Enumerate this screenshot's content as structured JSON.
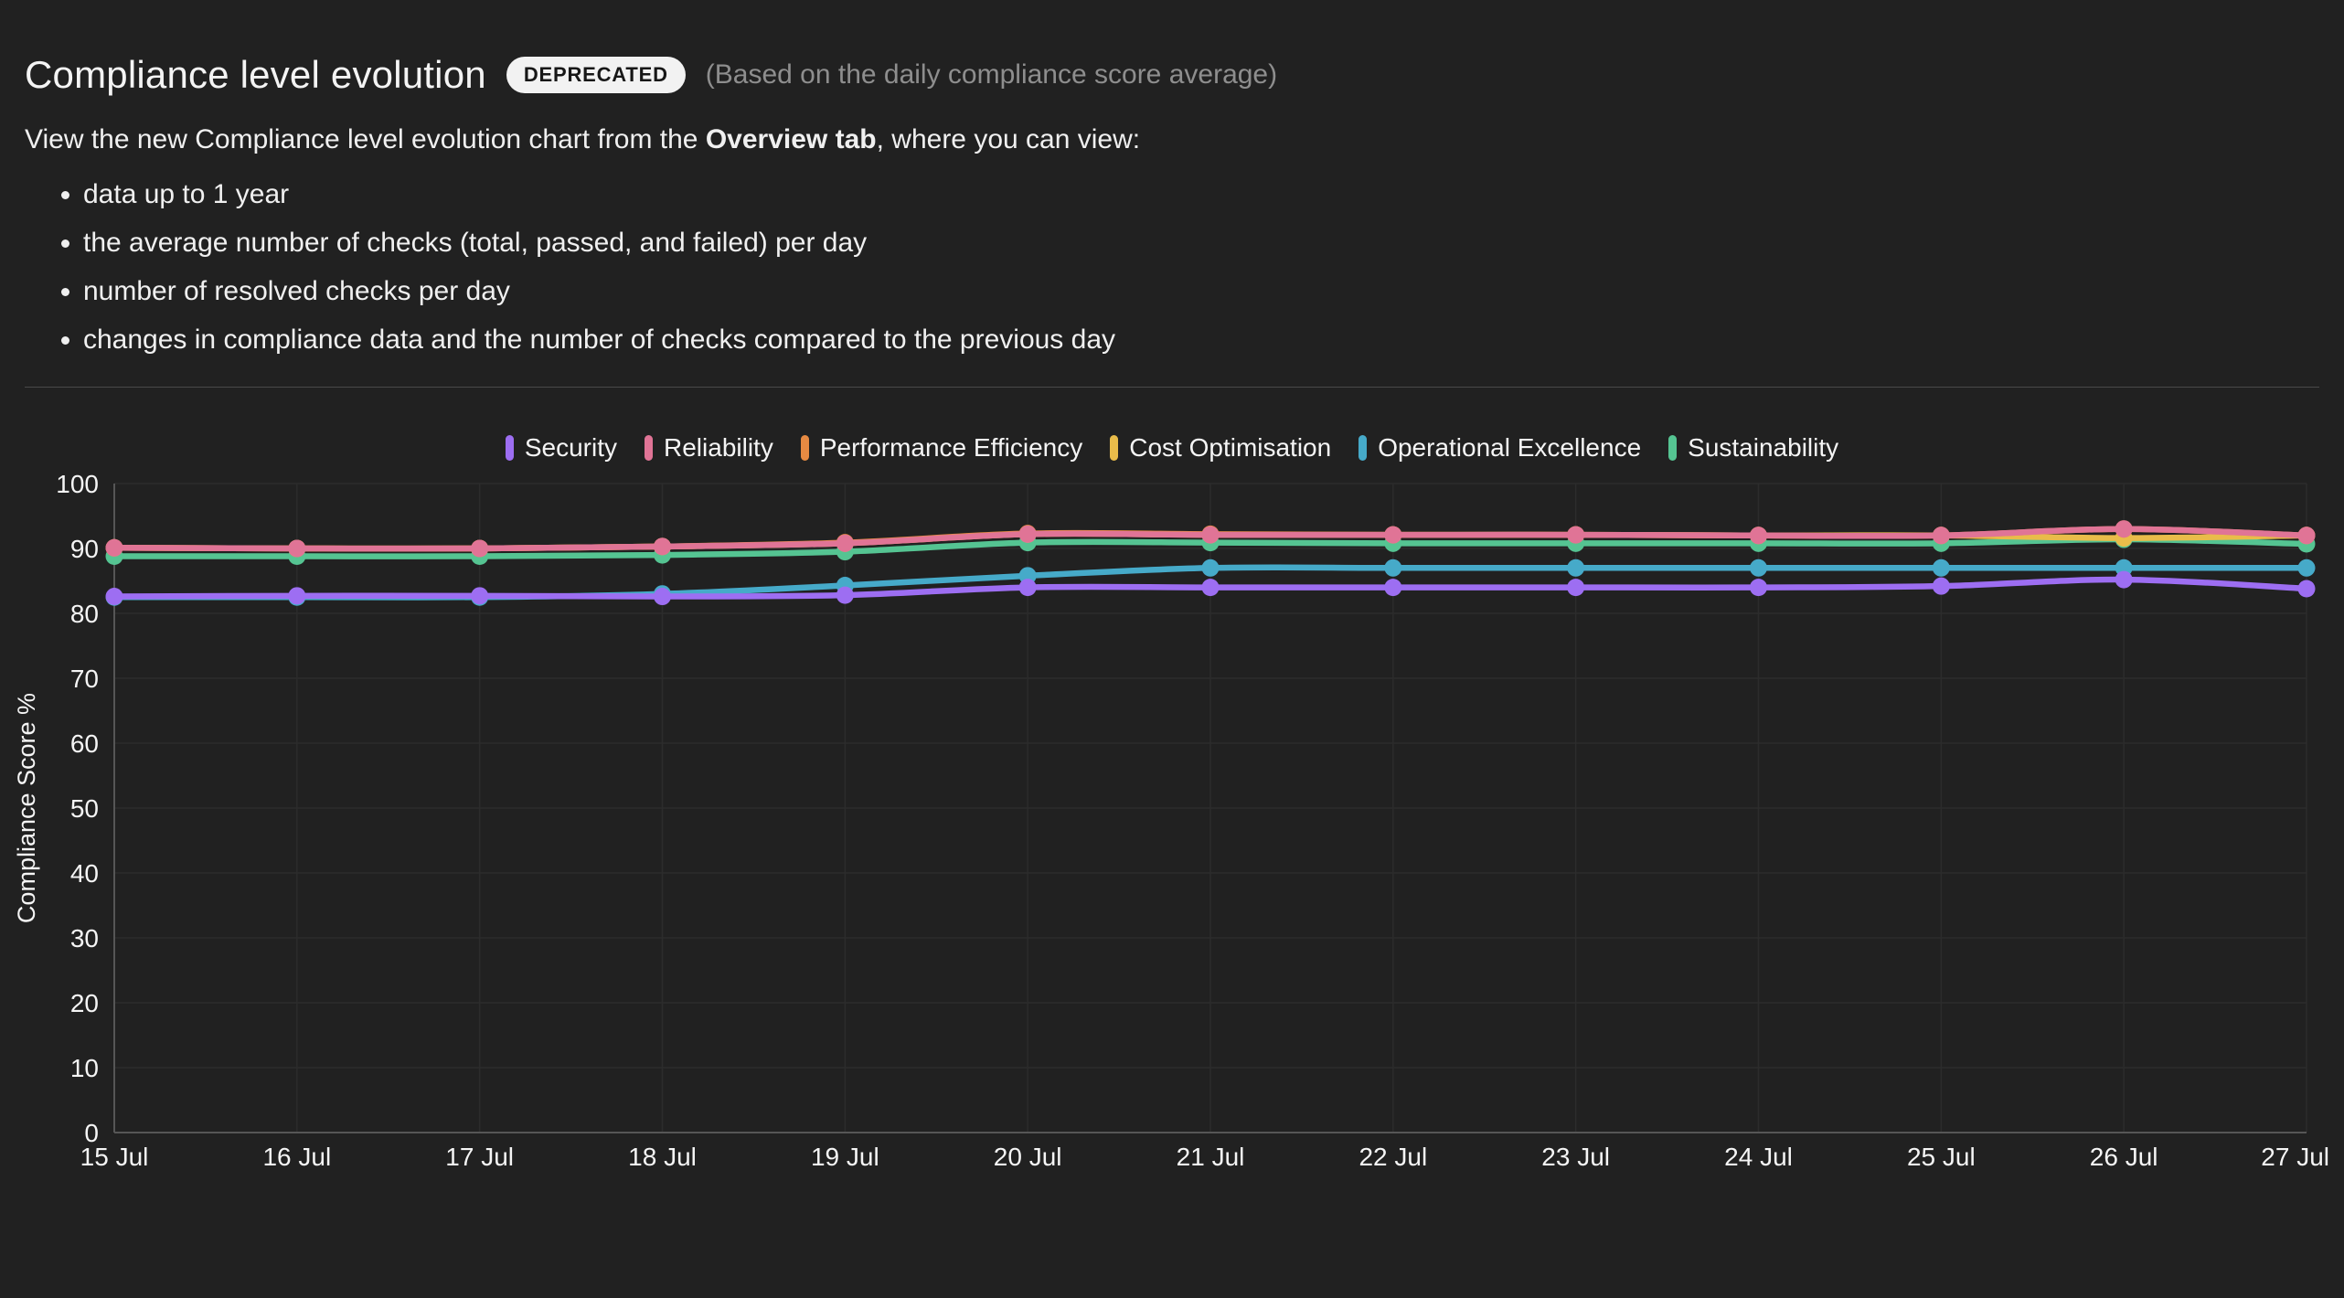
{
  "header": {
    "title": "Compliance level evolution",
    "badge": "DEPRECATED",
    "subtitle": "(Based on the daily compliance score average)",
    "description_prefix": "View the new Compliance level evolution chart from the ",
    "description_bold": "Overview tab",
    "description_suffix": ", where you can view:",
    "bullets": [
      "data up to 1 year",
      "the average number of checks (total, passed, and failed) per day",
      "number of resolved checks per day",
      "changes in compliance data and the number of checks compared to the previous day"
    ]
  },
  "chart_data": {
    "type": "line",
    "x": [
      "15 Jul",
      "16 Jul",
      "17 Jul",
      "18 Jul",
      "19 Jul",
      "20 Jul",
      "21 Jul",
      "22 Jul",
      "23 Jul",
      "24 Jul",
      "25 Jul",
      "26 Jul",
      "27 Jul"
    ],
    "xlabel": "",
    "ylabel": "Compliance Score %",
    "ylim": [
      0,
      100
    ],
    "ytick_step": 10,
    "grid": true,
    "legend_position": "top",
    "series": [
      {
        "name": "Security",
        "color": "#9d6ef2",
        "values": [
          82.6,
          82.7,
          82.7,
          82.6,
          82.8,
          84.0,
          84.0,
          84.0,
          84.0,
          84.0,
          84.2,
          85.2,
          83.8
        ]
      },
      {
        "name": "Reliability",
        "color": "#e07496",
        "values": [
          90.1,
          90.0,
          90.0,
          90.3,
          90.8,
          92.2,
          92.1,
          92.1,
          92.1,
          92.0,
          92.0,
          93.0,
          92.0
        ]
      },
      {
        "name": "Performance Efficiency",
        "color": "#e78a42",
        "values": [
          90.1,
          90.0,
          90.0,
          90.3,
          90.9,
          92.3,
          92.2,
          92.1,
          92.1,
          92.0,
          92.0,
          93.0,
          92.0
        ]
      },
      {
        "name": "Cost Optimisation",
        "color": "#e9bc4a",
        "values": [
          90.1,
          90.0,
          90.0,
          90.3,
          90.8,
          92.2,
          92.1,
          92.1,
          92.1,
          92.0,
          92.0,
          91.6,
          92.0
        ]
      },
      {
        "name": "Operational Excellence",
        "color": "#46aac9",
        "values": [
          82.5,
          82.5,
          82.5,
          83.0,
          84.3,
          85.8,
          87.0,
          87.0,
          87.0,
          87.0,
          87.0,
          87.0,
          87.0
        ]
      },
      {
        "name": "Sustainability",
        "color": "#55c492",
        "values": [
          88.8,
          88.8,
          88.8,
          89.0,
          89.5,
          90.9,
          90.9,
          90.8,
          90.8,
          90.8,
          90.8,
          91.4,
          90.7
        ]
      }
    ],
    "draw_order": [
      5,
      4,
      3,
      2,
      1,
      0
    ],
    "colors": {
      "background": "#212121",
      "grid": "#2c2c2c",
      "axis": "#565656",
      "tick_label": "#f5f5f5"
    }
  }
}
